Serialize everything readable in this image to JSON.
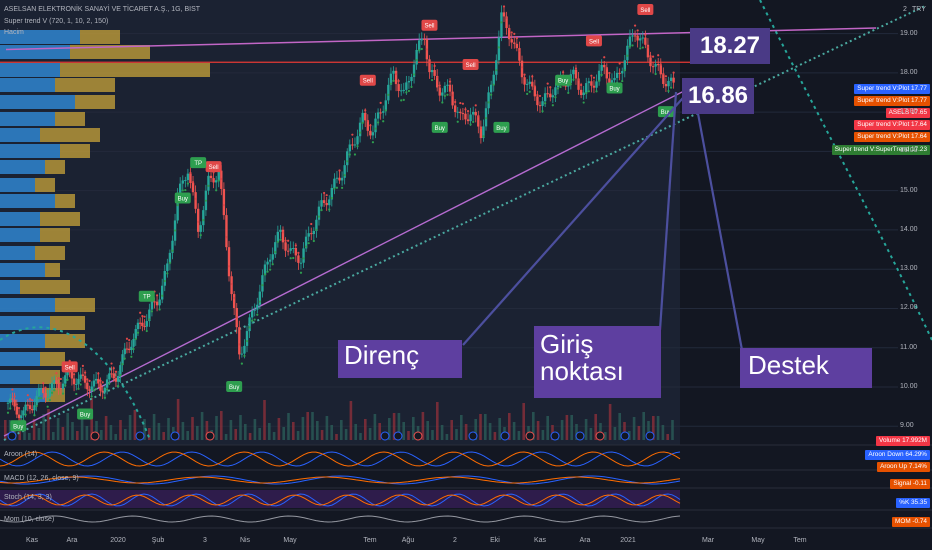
{
  "header": {
    "title": "ASELSAN ELEKTRONİK SANAYİ VE TİCARET A.Ş., 1G, BIST",
    "indicator": "Super trend V (720, 1, 10, 2, 150)",
    "volume_label": "Hacim",
    "currency": "TRY",
    "currency_value": "2"
  },
  "price_boxes": {
    "resistance": "18.27",
    "entry": "16.86"
  },
  "annotations": {
    "direnc": "Direnç",
    "giris_line1": "Giriş",
    "giris_line2": "noktası",
    "destek": "Destek"
  },
  "right_tags": [
    {
      "text": "Super trend V:Plot",
      "value": "17.77",
      "color": "#2962ff"
    },
    {
      "text": "Super trend V:Plot",
      "value": "17.77",
      "color": "#e65100"
    },
    {
      "text": "ASELS",
      "value": "17.65",
      "color": "#f23645"
    },
    {
      "text": "Super trend V:Plot",
      "value": "17.64",
      "color": "#f23645"
    },
    {
      "text": "Super trend V:Plot",
      "value": "17.64",
      "color": "#e65100"
    },
    {
      "text": "Super trend V:SuperTrend",
      "value": "17.23",
      "color": "#2e7d32"
    }
  ],
  "indicators": [
    {
      "label": "Aroon (14)",
      "tags": [
        {
          "text": "Aroon Down",
          "value": "64.29%",
          "color": "#2962ff"
        },
        {
          "text": "Aroon Up",
          "value": "7.14%",
          "color": "#e65100"
        }
      ]
    },
    {
      "label": "MACD (12, 26, close, 9)",
      "tags": [
        {
          "text": "Signal",
          "value": "-0.11",
          "color": "#e65100"
        }
      ]
    },
    {
      "label": "Stoch (14, 3, 3)",
      "tags": [
        {
          "text": "%K",
          "value": "35.35",
          "color": "#2962ff"
        }
      ]
    },
    {
      "label": "Mom (10, close)",
      "tags": [
        {
          "text": "MOM",
          "value": "-0.74",
          "color": "#e65100"
        }
      ]
    }
  ],
  "volume_tag": {
    "text": "Volume",
    "value": "17.992M",
    "color": "#f23645"
  },
  "x_axis": [
    "Kas",
    "Ara",
    "2020",
    "Şub",
    "3",
    "Nis",
    "May",
    "Tem",
    "Ağu",
    "2",
    "Eki",
    "Kas",
    "Ara",
    "2021",
    "Mar",
    "May",
    "Tem"
  ],
  "chart_data": {
    "type": "candlestick",
    "y_ticks": [
      9.0,
      10.0,
      11.0,
      12.0,
      13.0,
      14.0,
      15.0,
      16.0,
      17.0,
      18.0,
      19.0
    ],
    "y_tick_labels": [
      "9.00",
      "10.00",
      "11.00",
      "12.00",
      "13.00",
      "14.00",
      "15.00",
      "16.00",
      "17.00",
      "18.00",
      "19.00"
    ],
    "close_path": [
      [
        0,
        9.6
      ],
      [
        3,
        9.3
      ],
      [
        6,
        9.8
      ],
      [
        9,
        10.0
      ],
      [
        12,
        10.3
      ],
      [
        15,
        10.1
      ],
      [
        18,
        10.0
      ],
      [
        21,
        10.3
      ],
      [
        24,
        11.2
      ],
      [
        27,
        11.8
      ],
      [
        29,
        12.2
      ],
      [
        31,
        13.0
      ],
      [
        33,
        14.8
      ],
      [
        35,
        15.6
      ],
      [
        37,
        14.0
      ],
      [
        39,
        15.2
      ],
      [
        41,
        15.5
      ],
      [
        43,
        13.0
      ],
      [
        45,
        10.8
      ],
      [
        47,
        11.6
      ],
      [
        49,
        12.5
      ],
      [
        51,
        13.4
      ],
      [
        53,
        13.9
      ],
      [
        55,
        13.4
      ],
      [
        57,
        13.3
      ],
      [
        59,
        14.0
      ],
      [
        61,
        14.6
      ],
      [
        63,
        15.0
      ],
      [
        65,
        15.5
      ],
      [
        67,
        16.2
      ],
      [
        69,
        16.8
      ],
      [
        71,
        16.5
      ],
      [
        73,
        17.2
      ],
      [
        75,
        18.0
      ],
      [
        77,
        17.4
      ],
      [
        79,
        18.3
      ],
      [
        81,
        19.0
      ],
      [
        82,
        18.0
      ],
      [
        84,
        17.6
      ],
      [
        86,
        17.5
      ],
      [
        88,
        16.8
      ],
      [
        90,
        17.0
      ],
      [
        92,
        16.5
      ],
      [
        94,
        17.6
      ],
      [
        96,
        19.4
      ],
      [
        98,
        18.9
      ],
      [
        100,
        18.0
      ],
      [
        102,
        17.5
      ],
      [
        104,
        17.2
      ],
      [
        106,
        17.6
      ],
      [
        108,
        17.8
      ],
      [
        110,
        17.9
      ],
      [
        112,
        17.5
      ],
      [
        114,
        17.8
      ],
      [
        116,
        18.1
      ],
      [
        118,
        17.7
      ],
      [
        120,
        18.4
      ],
      [
        122,
        19.1
      ],
      [
        124,
        18.6
      ],
      [
        126,
        18.1
      ],
      [
        128,
        17.8
      ],
      [
        130,
        17.6
      ]
    ],
    "buy_signals": [
      [
        2,
        9.0
      ],
      [
        15,
        9.3
      ],
      [
        44,
        10.0
      ],
      [
        34,
        14.8
      ],
      [
        84,
        16.6
      ],
      [
        96,
        16.6
      ],
      [
        108,
        17.8
      ],
      [
        118,
        17.6
      ],
      [
        128,
        17.0
      ]
    ],
    "sell_signals": [
      [
        12,
        10.5
      ],
      [
        40,
        15.6
      ],
      [
        70,
        17.8
      ],
      [
        82,
        19.2
      ],
      [
        90,
        18.2
      ],
      [
        114,
        18.8
      ],
      [
        124,
        19.6
      ]
    ],
    "tp_signals": [
      [
        37,
        15.7
      ],
      [
        27,
        12.3
      ]
    ],
    "resistance_line": [
      [
        0,
        18.9
      ],
      [
        166,
        19.4
      ]
    ],
    "horizontal_level": 18.27,
    "support_line": [
      [
        0,
        8.9
      ],
      [
        178,
        19.6
      ]
    ],
    "ascending_support": [
      [
        0,
        8.8
      ],
      [
        128,
        16.6
      ]
    ],
    "x_max": 178
  }
}
